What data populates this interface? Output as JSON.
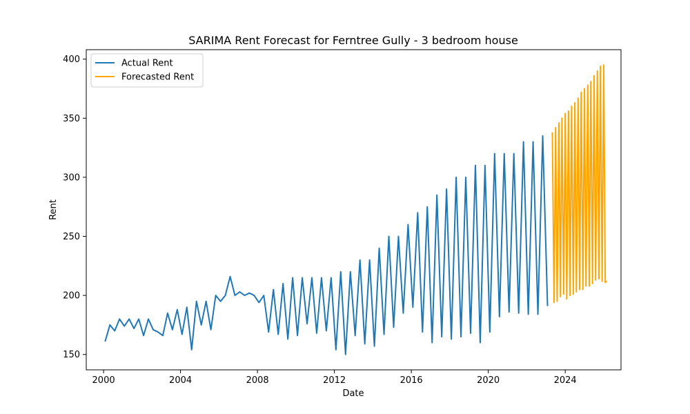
{
  "chart_data": {
    "type": "line",
    "title": "SARIMA Rent Forecast for Ferntree Gully - 3 bedroom house",
    "xlabel": "Date",
    "ylabel": "Rent",
    "xlim": [
      1999.1,
      2026.9
    ],
    "ylim": [
      137,
      408
    ],
    "x_ticks": [
      2000,
      2004,
      2008,
      2012,
      2016,
      2020,
      2024
    ],
    "x_tick_labels": [
      "2000",
      "2004",
      "2008",
      "2012",
      "2016",
      "2020",
      "2024"
    ],
    "y_ticks": [
      150,
      200,
      250,
      300,
      350,
      400
    ],
    "y_tick_labels": [
      "150",
      "200",
      "250",
      "300",
      "350",
      "400"
    ],
    "grid": false,
    "legend_position": "top-left",
    "series": [
      {
        "name": "Actual Rent",
        "color": "#1f77b4",
        "x": [
          2000.08,
          2000.33,
          2000.58,
          2000.83,
          2001.08,
          2001.33,
          2001.58,
          2001.83,
          2002.08,
          2002.33,
          2002.58,
          2002.83,
          2003.08,
          2003.33,
          2003.58,
          2003.83,
          2004.08,
          2004.33,
          2004.58,
          2004.83,
          2005.08,
          2005.33,
          2005.58,
          2005.83,
          2006.08,
          2006.33,
          2006.58,
          2006.83,
          2007.08,
          2007.33,
          2007.58,
          2007.83,
          2008.08,
          2008.33,
          2008.58,
          2008.83,
          2009.08,
          2009.33,
          2009.58,
          2009.83,
          2010.08,
          2010.33,
          2010.58,
          2010.83,
          2011.08,
          2011.33,
          2011.58,
          2011.83,
          2012.08,
          2012.33,
          2012.58,
          2012.83,
          2013.08,
          2013.33,
          2013.58,
          2013.83,
          2014.08,
          2014.33,
          2014.58,
          2014.83,
          2015.08,
          2015.33,
          2015.58,
          2015.83,
          2016.08,
          2016.33,
          2016.58,
          2016.83,
          2017.08,
          2017.33,
          2017.58,
          2017.83,
          2018.08,
          2018.33,
          2018.58,
          2018.83,
          2019.08,
          2019.33,
          2019.58,
          2019.83,
          2020.08,
          2020.33,
          2020.58,
          2020.83,
          2021.08,
          2021.33,
          2021.58,
          2021.83,
          2022.08,
          2022.33,
          2022.58,
          2022.83,
          2023.08
        ],
        "y": [
          161,
          175,
          170,
          180,
          174,
          180,
          172,
          180,
          166,
          180,
          171,
          169,
          166,
          185,
          171,
          188,
          167,
          190,
          154,
          195,
          175,
          195,
          171,
          200,
          195,
          200,
          216,
          200,
          203,
          200,
          202,
          200,
          194,
          200,
          169,
          205,
          167,
          210,
          163,
          215,
          166,
          215,
          176,
          215,
          168,
          215,
          170,
          215,
          154,
          220,
          150,
          220,
          166,
          230,
          159,
          230,
          157,
          240,
          167,
          250,
          173,
          250,
          185,
          260,
          190,
          270,
          169,
          275,
          160,
          285,
          165,
          290,
          163,
          300,
          165,
          300,
          168,
          310,
          160,
          310,
          169,
          320,
          182,
          320,
          186,
          320,
          185,
          330,
          184,
          330,
          184,
          335,
          191
        ]
      },
      {
        "name": "Forecasted Rent",
        "color": "#ffa500",
        "x": [
          2023.33,
          2023.42,
          2023.5,
          2023.58,
          2023.67,
          2023.75,
          2023.83,
          2023.92,
          2024.0,
          2024.08,
          2024.17,
          2024.25,
          2024.33,
          2024.42,
          2024.5,
          2024.58,
          2024.67,
          2024.75,
          2024.83,
          2024.92,
          2025.0,
          2025.08,
          2025.17,
          2025.25,
          2025.33,
          2025.42,
          2025.5,
          2025.58,
          2025.67,
          2025.75,
          2025.83,
          2025.92,
          2026.0,
          2026.08,
          2026.17
        ],
        "y": [
          338,
          194,
          342,
          195,
          346,
          199,
          350,
          201,
          354,
          197,
          356,
          200,
          360,
          201,
          363,
          203,
          367,
          205,
          372,
          205,
          375,
          208,
          378,
          208,
          381,
          210,
          386,
          213,
          390,
          214,
          394,
          212,
          395,
          211,
          212
        ]
      }
    ]
  }
}
